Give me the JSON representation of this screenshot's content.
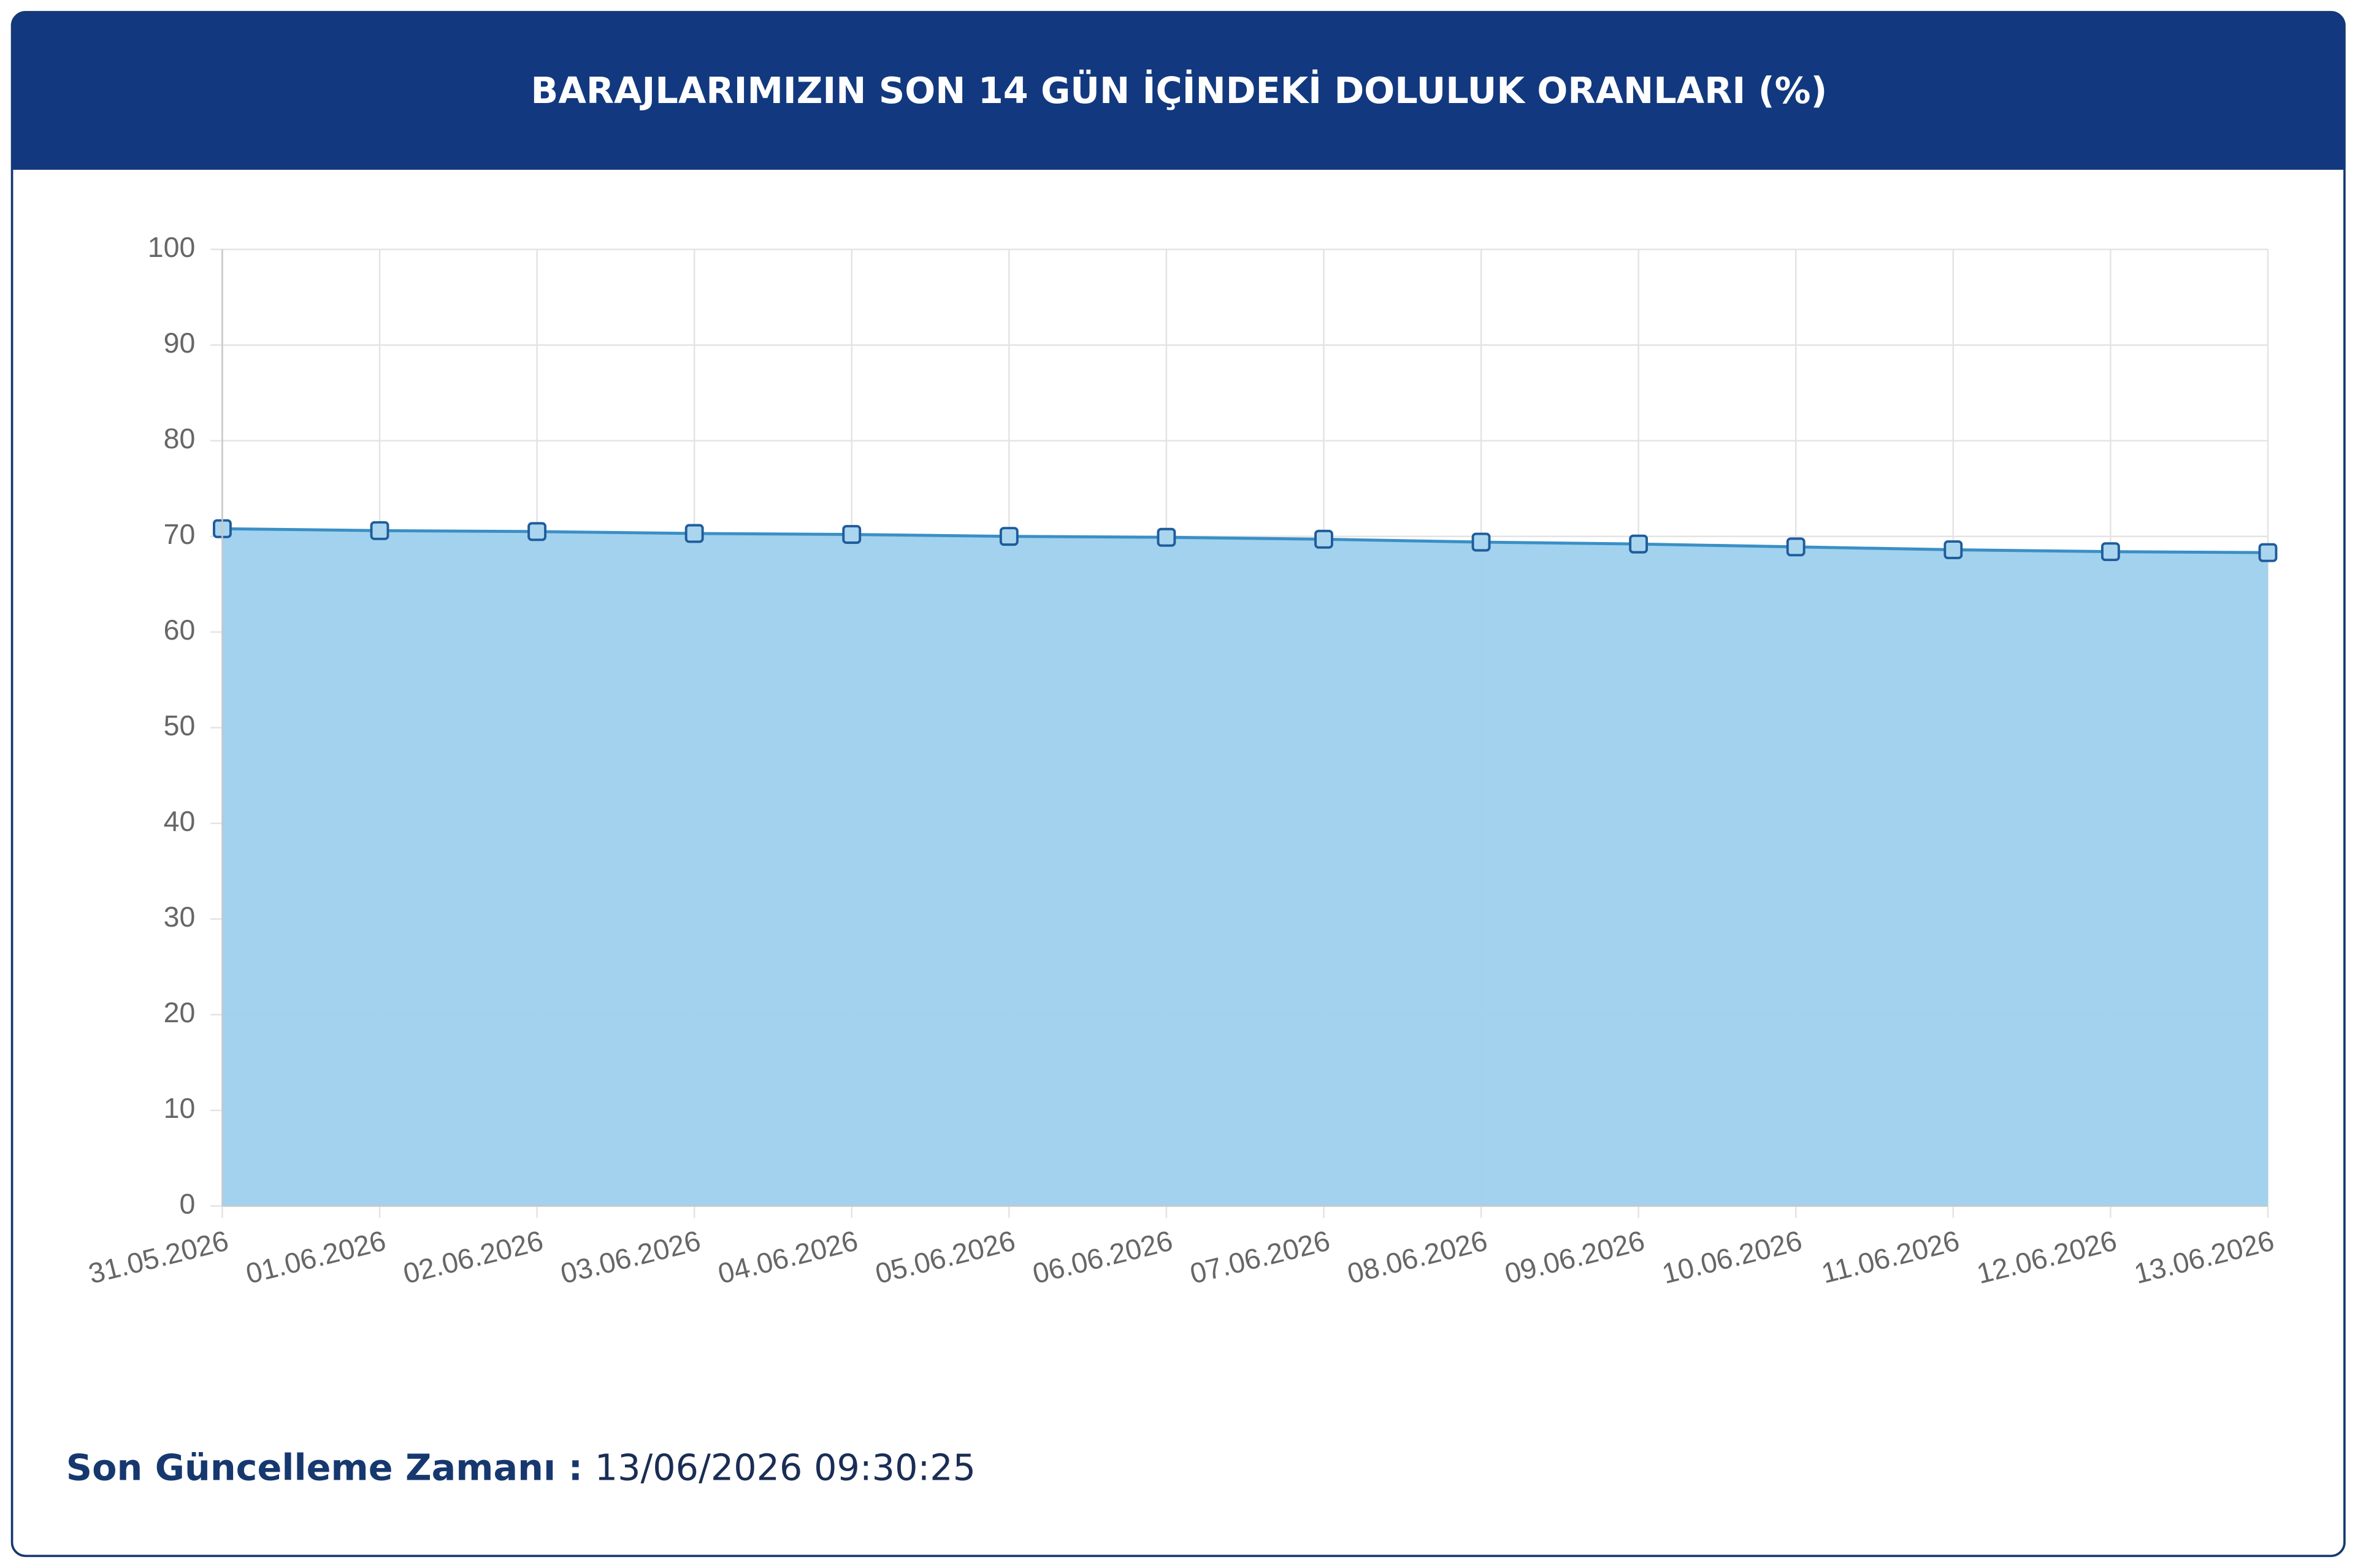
{
  "chart_data": {
    "type": "area",
    "title": "BARAJLARIMIZIN SON 14 GÜN İÇİNDEKİ DOLULUK ORANLARI (%)",
    "categories": [
      "31.05.2026",
      "01.06.2026",
      "02.06.2026",
      "03.06.2026",
      "04.06.2026",
      "05.06.2026",
      "06.06.2026",
      "07.06.2026",
      "08.06.2026",
      "09.06.2026",
      "10.06.2026",
      "11.06.2026",
      "12.06.2026",
      "13.06.2026"
    ],
    "series": [
      {
        "color": "#9dd0ec",
        "values": [
          70.8,
          70.6,
          70.5,
          70.3,
          70.2,
          70.0,
          69.9,
          69.7,
          69.4,
          69.2,
          68.9,
          68.6,
          68.4,
          68.3
        ]
      }
    ],
    "ylim": [
      0,
      100
    ],
    "yticks": [
      0,
      10,
      20,
      30,
      40,
      50,
      60,
      70,
      80,
      90,
      100
    ],
    "grid": true
  },
  "footer": {
    "label": "Son Güncelleme Zamanı :",
    "value": "13/06/2026 09:30:25"
  }
}
